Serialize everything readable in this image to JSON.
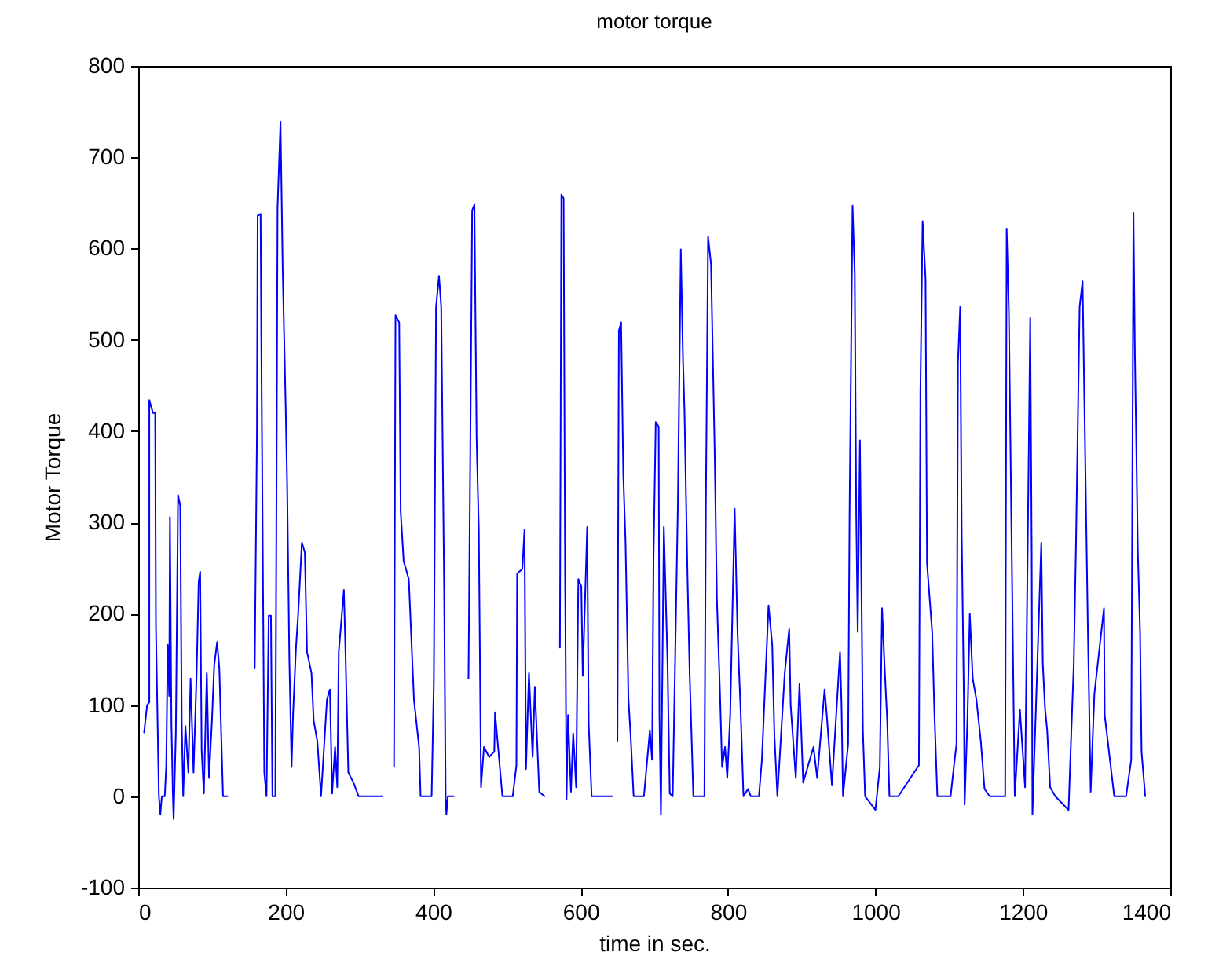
{
  "chart_data": {
    "type": "line",
    "title": "motor torque",
    "xlabel": "time in sec.",
    "ylabel": "Motor Torque",
    "xlim": [
      0,
      1400
    ],
    "xticks": [
      0,
      200,
      400,
      600,
      800,
      1000,
      1200,
      1400
    ],
    "ylim": [
      -100,
      800
    ],
    "yticks": [
      -100,
      0,
      100,
      200,
      300,
      400,
      500,
      600,
      700,
      800
    ],
    "line_style": "solid",
    "series": [
      {
        "color": "#0000ff",
        "x": [
          8,
          12,
          15,
          15,
          20,
          23,
          24,
          26,
          28,
          30,
          32,
          36,
          38,
          40,
          42,
          43,
          45,
          47,
          48,
          51,
          54,
          57,
          59,
          61,
          64,
          68,
          71,
          75,
          79,
          82,
          84,
          86,
          89,
          93,
          96,
          100,
          103,
          107,
          110,
          112,
          115,
          121,
          140,
          158,
          161,
          162,
          166,
          167,
          171,
          174,
          177,
          180,
          182,
          186,
          189,
          193,
          196,
          200,
          202,
          205,
          208,
          210,
          214,
          217,
          222,
          226,
          229,
          235,
          238,
          243,
          248,
          256,
          260,
          263,
          267,
          270,
          272,
          279,
          281,
          285,
          292,
          299,
          331,
          340,
          347,
          349,
          354,
          356,
          360,
          367,
          371,
          374,
          381,
          383,
          398,
          401,
          404,
          408,
          411,
          415,
          417,
          418,
          420,
          428,
          438,
          448,
          453,
          456,
          459,
          462,
          465,
          469,
          476,
          483,
          484,
          494,
          508,
          513,
          514,
          521,
          524,
          526,
          530,
          535,
          538,
          544,
          551,
          562,
          572,
          574,
          577,
          579,
          581,
          583,
          587,
          590,
          594,
          597,
          601,
          603,
          609,
          611,
          615,
          643,
          647,
          650,
          652,
          655,
          658,
          661,
          665,
          668,
          672,
          686,
          694,
          697,
          699,
          702,
          706,
          707,
          709,
          713,
          718,
          721,
          725,
          732,
          736,
          739,
          741,
          745,
          748,
          753,
          768,
          770,
          773,
          777,
          782,
          785,
          789,
          792,
          796,
          799,
          803,
          809,
          813,
          817,
          821,
          827,
          831,
          842,
          846,
          855,
          860,
          863,
          867,
          877,
          883,
          885,
          892,
          897,
          902,
          916,
          921,
          931,
          934,
          941,
          952,
          954,
          956,
          963,
          965,
          969,
          972,
          974,
          976,
          979,
          983,
          986,
          1000,
          1006,
          1009,
          1013,
          1016,
          1019,
          1031,
          1059,
          1061,
          1064,
          1068,
          1070,
          1077,
          1080,
          1084,
          1102,
          1107,
          1110,
          1112,
          1115,
          1117,
          1120,
          1121,
          1125,
          1128,
          1132,
          1137,
          1143,
          1148,
          1155,
          1176,
          1178,
          1181,
          1185,
          1189,
          1196,
          1203,
          1210,
          1212,
          1213,
          1225,
          1227,
          1230,
          1233,
          1237,
          1244,
          1262,
          1265,
          1269,
          1272,
          1277,
          1281,
          1285,
          1288,
          1292,
          1297,
          1310,
          1311,
          1324,
          1340,
          1347,
          1350,
          1352,
          1356,
          1359,
          1361,
          1366
        ],
        "values": [
          70,
          100,
          103,
          434,
          420,
          420,
          186,
          92,
          0,
          -20,
          0,
          0,
          34,
          166,
          110,
          306,
          80,
          0,
          -25,
          70,
          330,
          318,
          80,
          0,
          77,
          26,
          129,
          26,
          129,
          235,
          246,
          50,
          3,
          135,
          20,
          83,
          143,
          169,
          140,
          83,
          0,
          0,
          null,
          140,
          395,
          636,
          638,
          496,
          26,
          0,
          198,
          198,
          0,
          0,
          645,
          739,
          576,
          427,
          341,
          149,
          32,
          89,
          163,
          200,
          278,
          267,
          158,
          135,
          83,
          60,
          0,
          106,
          117,
          3,
          54,
          10,
          158,
          226,
          163,
          26,
          15,
          0,
          0,
          null,
          32,
          527,
          519,
          312,
          258,
          238,
          163,
          106,
          54,
          0,
          0,
          126,
          536,
          570,
          536,
          226,
          0,
          -20,
          0,
          0,
          null,
          129,
          642,
          648,
          392,
          292,
          10,
          54,
          43,
          49,
          92,
          0,
          0,
          34,
          244,
          249,
          292,
          30,
          135,
          43,
          120,
          5,
          0,
          null,
          163,
          659,
          655,
          249,
          -3,
          89,
          5,
          69,
          10,
          238,
          230,
          132,
          295,
          80,
          0,
          0,
          null,
          60,
          510,
          519,
          352,
          278,
          106,
          66,
          0,
          0,
          72,
          40,
          261,
          410,
          405,
          90,
          -20,
          295,
          146,
          3,
          0,
          318,
          599,
          478,
          421,
          244,
          135,
          0,
          0,
          321,
          613,
          583,
          375,
          215,
          117,
          32,
          54,
          20,
          89,
          315,
          178,
          97,
          0,
          8,
          0,
          0,
          40,
          209,
          166,
          66,
          0,
          135,
          183,
          100,
          20,
          123,
          15,
          54,
          20,
          117,
          89,
          12,
          158,
          100,
          0,
          57,
          315,
          647,
          572,
          307,
          180,
          390,
          72,
          0,
          -15,
          32,
          206,
          132,
          83,
          0,
          0,
          34,
          441,
          630,
          567,
          255,
          180,
          92,
          0,
          0,
          37,
          57,
          476,
          536,
          289,
          106,
          -9,
          89,
          200,
          129,
          106,
          60,
          8,
          0,
          0,
          622,
          532,
          261,
          0,
          95,
          10,
          524,
          264,
          -20,
          278,
          146,
          97,
          72,
          10,
          0,
          -15,
          54,
          143,
          272,
          536,
          564,
          350,
          192,
          5,
          112,
          206,
          89,
          0,
          0,
          40,
          639,
          484,
          267,
          180,
          49,
          0
        ]
      }
    ]
  }
}
